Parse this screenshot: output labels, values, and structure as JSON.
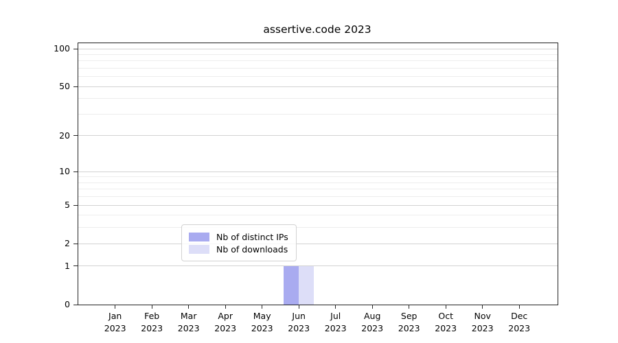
{
  "chart_data": {
    "type": "bar",
    "title": "assertive.code 2023",
    "categories": [
      "Jan",
      "Feb",
      "Mar",
      "Apr",
      "May",
      "Jun",
      "Jul",
      "Aug",
      "Sep",
      "Oct",
      "Nov",
      "Dec"
    ],
    "year_label": "2023",
    "series": [
      {
        "name": "Nb of distinct IPs",
        "color": "#a9abf0",
        "values": [
          0,
          0,
          0,
          0,
          0,
          1,
          0,
          0,
          0,
          0,
          0,
          0
        ]
      },
      {
        "name": "Nb of downloads",
        "color": "#dddef8",
        "values": [
          0,
          0,
          0,
          0,
          0,
          1,
          0,
          0,
          0,
          0,
          0,
          0
        ]
      }
    ],
    "xlabel": "",
    "ylabel": "",
    "y_axis": {
      "scale": "log10(value+1)",
      "min": 0,
      "max": 100,
      "ticks": [
        0,
        1,
        2,
        5,
        10,
        20,
        50,
        100
      ],
      "minor_ticks": [
        3,
        4,
        6,
        7,
        8,
        9,
        30,
        40,
        60,
        70,
        80,
        90
      ]
    },
    "grid": true,
    "legend_position": "bottom-center"
  }
}
